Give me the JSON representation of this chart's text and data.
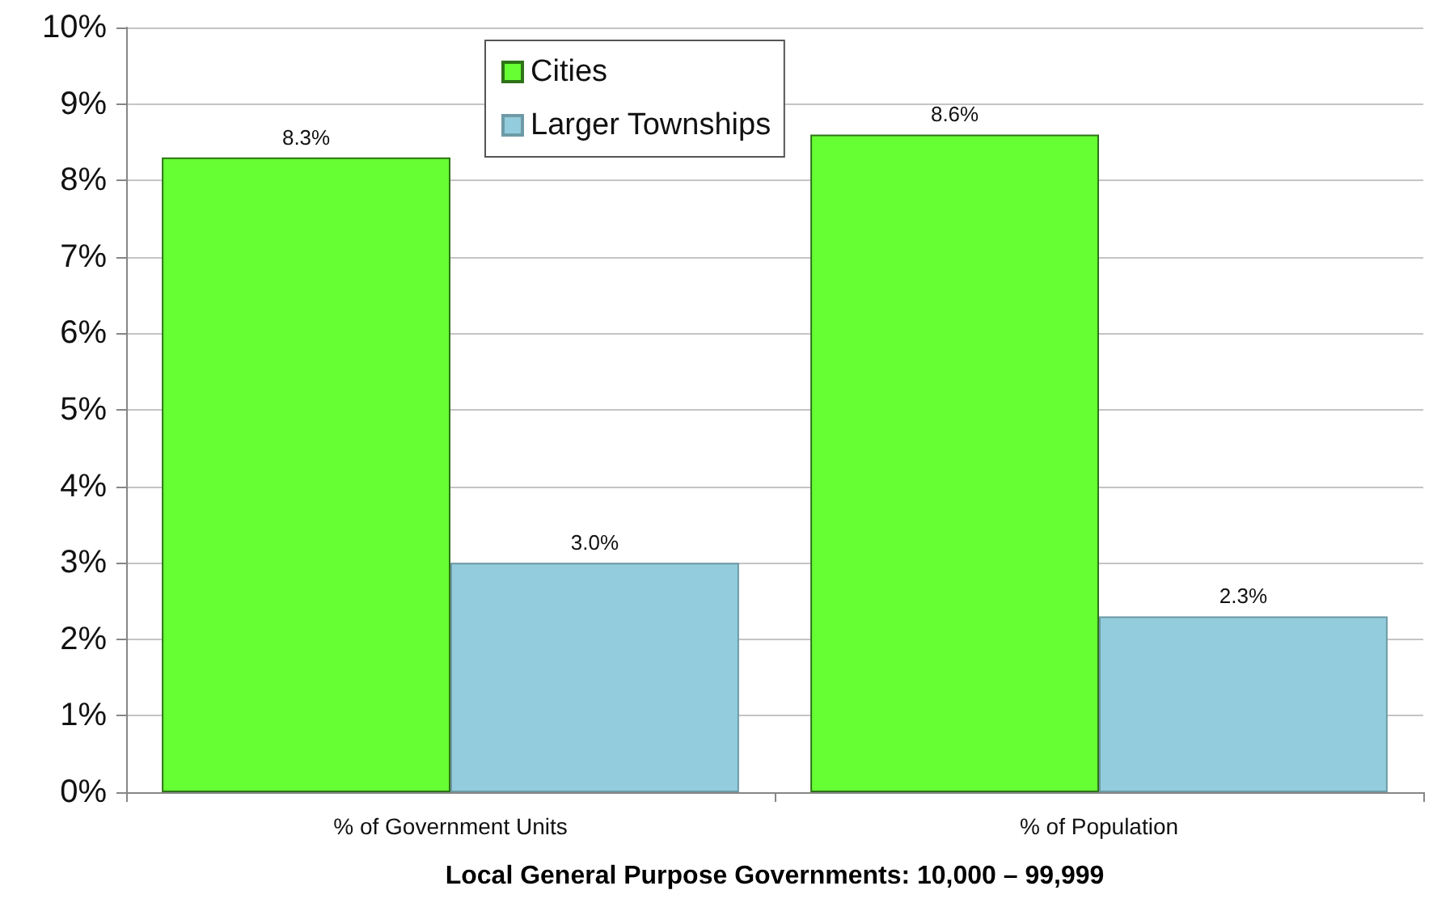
{
  "chart_data": {
    "type": "bar",
    "xlabel": "Local General Purpose Governments: 10,000 – 99,999",
    "categories": [
      "% of Government Units",
      "% of Population"
    ],
    "series": [
      {
        "name": "Cities",
        "color": "#66ff33",
        "values": [
          8.3,
          8.6
        ],
        "value_labels": [
          "8.3%",
          "8.6%"
        ]
      },
      {
        "name": "Larger Townships",
        "color": "#93cddd",
        "values": [
          3.0,
          2.3
        ],
        "value_labels": [
          "3.0%",
          "2.3%"
        ]
      }
    ],
    "ylim": [
      0,
      10
    ],
    "yticks": [
      {
        "value": 0,
        "label": "0%"
      },
      {
        "value": 1,
        "label": "1%"
      },
      {
        "value": 2,
        "label": "2%"
      },
      {
        "value": 3,
        "label": "3%"
      },
      {
        "value": 4,
        "label": "4%"
      },
      {
        "value": 5,
        "label": "5%"
      },
      {
        "value": 6,
        "label": "6%"
      },
      {
        "value": 7,
        "label": "7%"
      },
      {
        "value": 8,
        "label": "8%"
      },
      {
        "value": 9,
        "label": "9%"
      },
      {
        "value": 10,
        "label": "10%"
      }
    ],
    "grid": "y",
    "legend": "top"
  }
}
